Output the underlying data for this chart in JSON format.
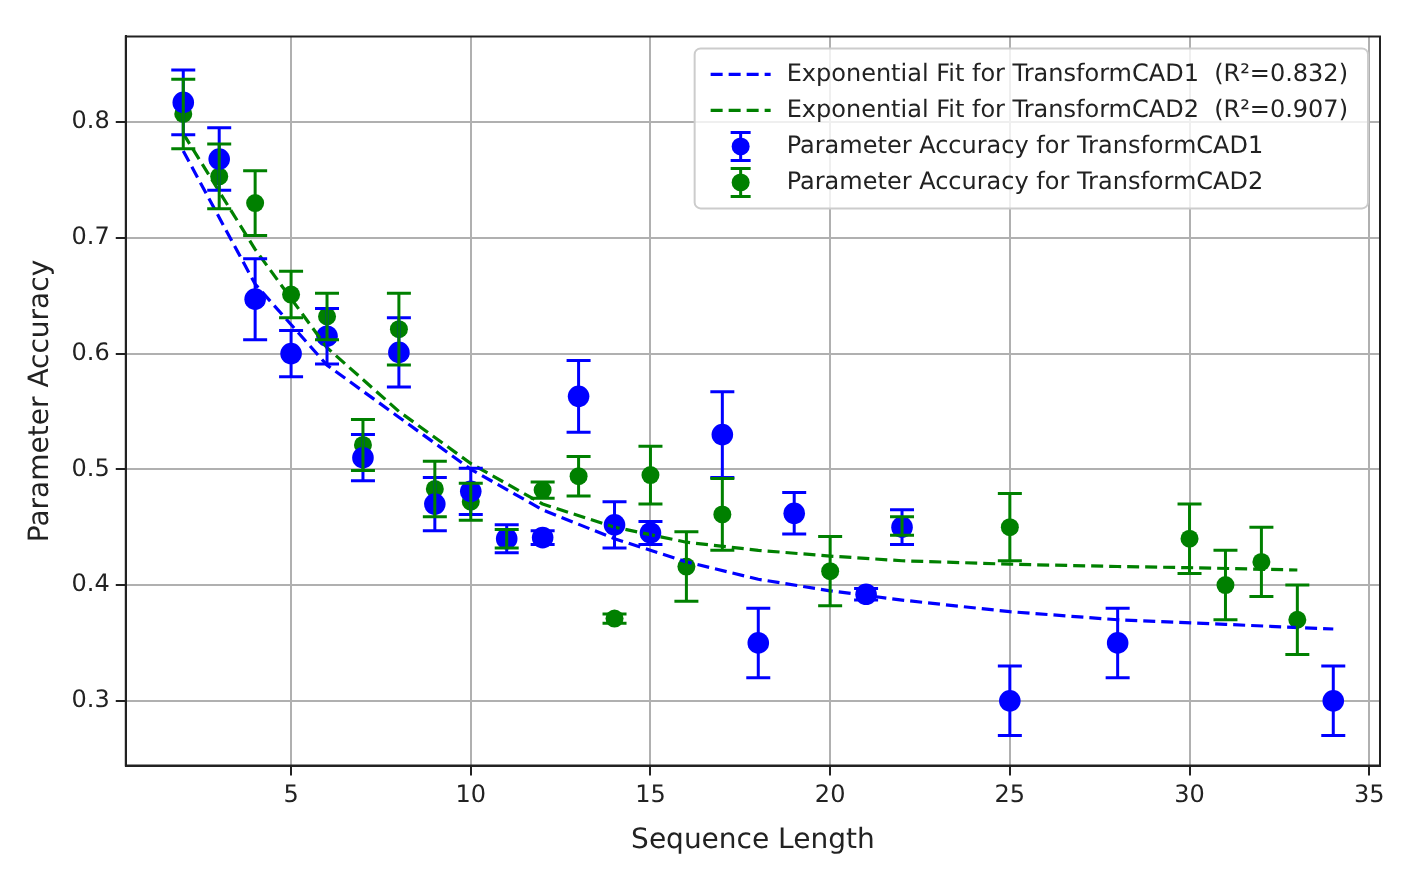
{
  "chart_data": {
    "type": "scatter",
    "xlabel": "Sequence Length",
    "ylabel": "Parameter Accuracy",
    "xlim": [
      0.4,
      35.3
    ],
    "xticks": [
      5,
      10,
      15,
      20,
      25,
      30,
      35
    ],
    "ylim": [
      0.244,
      0.874
    ],
    "yticks": [
      0.3,
      0.4,
      0.5,
      0.6,
      0.7,
      0.8
    ],
    "grid": true,
    "legend": "top right",
    "marker": "circle",
    "series": [
      {
        "name": "Exponential Fit for TransformCAD1  (R²=0.832)",
        "type": "line",
        "line_style": "dashed",
        "marker": "none",
        "color": "#0000ff",
        "x": [
          2,
          4,
          6,
          8,
          10,
          12,
          14,
          16,
          18,
          20,
          22,
          25,
          28,
          31,
          34
        ],
        "values": [
          0.775,
          0.66,
          0.59,
          0.545,
          0.5,
          0.465,
          0.44,
          0.42,
          0.405,
          0.395,
          0.387,
          0.377,
          0.37,
          0.366,
          0.362
        ]
      },
      {
        "name": "Exponential Fit for TransformCAD2  (R²=0.907)",
        "type": "line",
        "line_style": "dashed",
        "marker": "none",
        "color": "#008000",
        "x": [
          2,
          4,
          6,
          8,
          10,
          12,
          14,
          16,
          18,
          20,
          22,
          25,
          28,
          30,
          33
        ],
        "values": [
          0.79,
          0.69,
          0.605,
          0.55,
          0.505,
          0.47,
          0.45,
          0.437,
          0.43,
          0.425,
          0.421,
          0.418,
          0.416,
          0.415,
          0.413
        ]
      },
      {
        "name": "Parameter Accuracy for TransformCAD1",
        "type": "scatter",
        "color": "#0000ff",
        "x": [
          2,
          3,
          4,
          5,
          6,
          7,
          8,
          9,
          10,
          11,
          12,
          13,
          14,
          15,
          17,
          18,
          19,
          21,
          22,
          25,
          28,
          34
        ],
        "values": [
          0.817,
          0.768,
          0.647,
          0.6,
          0.615,
          0.51,
          0.601,
          0.47,
          0.481,
          0.44,
          0.441,
          0.563,
          0.452,
          0.445,
          0.53,
          0.35,
          0.462,
          0.392,
          0.45,
          0.3,
          0.35,
          0.3
        ],
        "errors": [
          0.028,
          0.027,
          0.035,
          0.02,
          0.024,
          0.02,
          0.03,
          0.023,
          0.02,
          0.012,
          0.006,
          0.031,
          0.02,
          0.01,
          0.037,
          0.03,
          0.018,
          0.005,
          0.015,
          0.03,
          0.03,
          0.03
        ]
      },
      {
        "name": "Parameter Accuracy for TransformCAD2",
        "type": "scatter",
        "color": "#008000",
        "x": [
          2,
          3,
          4,
          5,
          6,
          7,
          8,
          9,
          10,
          11,
          12,
          13,
          14,
          15,
          16,
          17,
          20,
          22,
          25,
          30,
          31,
          32,
          33
        ],
        "values": [
          0.807,
          0.753,
          0.73,
          0.651,
          0.632,
          0.521,
          0.621,
          0.483,
          0.472,
          0.44,
          0.482,
          0.494,
          0.371,
          0.495,
          0.416,
          0.461,
          0.412,
          0.451,
          0.45,
          0.44,
          0.4,
          0.42,
          0.37
        ],
        "errors": [
          0.03,
          0.028,
          0.028,
          0.02,
          0.02,
          0.022,
          0.031,
          0.024,
          0.016,
          0.008,
          0.007,
          0.017,
          0.004,
          0.025,
          0.03,
          0.031,
          0.03,
          0.008,
          0.029,
          0.03,
          0.03,
          0.03,
          0.03
        ]
      }
    ]
  }
}
